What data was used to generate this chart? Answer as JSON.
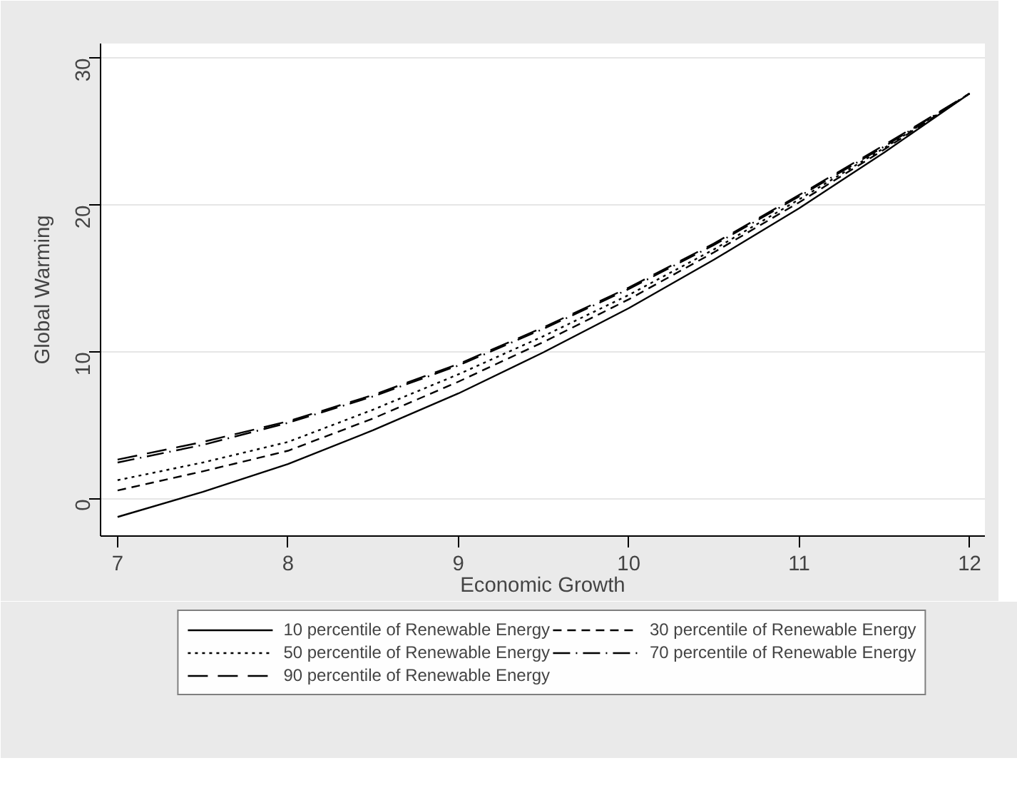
{
  "chart_data": {
    "type": "line",
    "xlabel": "Economic Growth",
    "ylabel": "Global Warming",
    "x": [
      7,
      7.5,
      8,
      8.5,
      9,
      9.5,
      10,
      10.5,
      11,
      11.5,
      12
    ],
    "xlim": [
      6.9,
      12.09
    ],
    "xticks": [
      7,
      8,
      9,
      10,
      11,
      12
    ],
    "ylim": [
      -2.5,
      31
    ],
    "yticks": [
      0,
      10,
      20,
      30
    ],
    "grid": "y",
    "legend": "bottom",
    "series": [
      {
        "name": "10 percentile of Renewable Energy",
        "color": "#000000",
        "line_style": "solid",
        "values": [
          -1.2,
          0.5,
          2.4,
          4.7,
          7.2,
          10.0,
          13.0,
          16.3,
          19.8,
          23.6,
          27.6
        ]
      },
      {
        "name": "30 percentile of Renewable Energy",
        "color": "#000000",
        "line_style": "dashed",
        "values": [
          0.6,
          1.9,
          3.3,
          5.5,
          8.0,
          10.7,
          13.6,
          16.8,
          20.2,
          23.8,
          27.6
        ]
      },
      {
        "name": "50 percentile of Renewable Energy",
        "color": "#000000",
        "line_style": "dotted",
        "values": [
          1.3,
          2.5,
          3.9,
          6.1,
          8.5,
          11.1,
          13.9,
          17.0,
          20.4,
          23.9,
          27.6
        ]
      },
      {
        "name": "70 percentile of Renewable Energy",
        "color": "#000000",
        "line_style": "dashdot",
        "values": [
          2.5,
          3.7,
          5.2,
          7.0,
          9.1,
          11.6,
          14.3,
          17.3,
          20.6,
          24.0,
          27.6
        ]
      },
      {
        "name": "90 percentile of Renewable Energy",
        "color": "#000000",
        "line_style": "longdash",
        "values": [
          2.7,
          3.9,
          5.3,
          7.1,
          9.2,
          11.7,
          14.4,
          17.4,
          20.7,
          24.1,
          27.6
        ]
      }
    ]
  }
}
